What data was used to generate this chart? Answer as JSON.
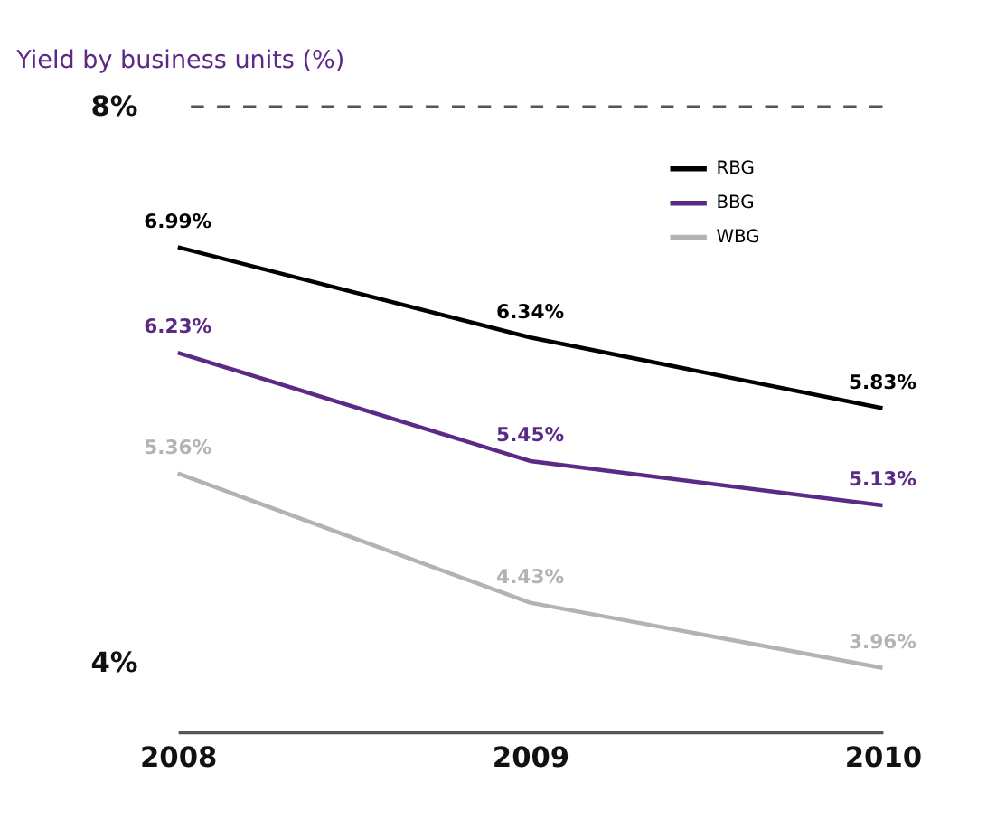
{
  "chart_data": {
    "type": "line",
    "title": "Yield by business units (%)",
    "categories": [
      "2008",
      "2009",
      "2010"
    ],
    "series": [
      {
        "name": "RBG",
        "color": "#000000",
        "values": [
          6.99,
          6.34,
          5.83
        ],
        "value_labels": [
          "6.99%",
          "6.34%",
          "5.83%"
        ]
      },
      {
        "name": "BBG",
        "color": "#5b2a86",
        "values": [
          6.23,
          5.45,
          5.13
        ],
        "value_labels": [
          "6.23%",
          "5.45%",
          "5.13%"
        ]
      },
      {
        "name": "WBG",
        "color": "#b3b3b3",
        "values": [
          5.36,
          4.43,
          3.96
        ],
        "value_labels": [
          "5.36%",
          "4.43%",
          "3.96%"
        ]
      }
    ],
    "ylim": [
      3.5,
      8
    ],
    "yticks": [
      {
        "value": 4,
        "label": "4%"
      },
      {
        "value": 8,
        "label": "8%"
      }
    ],
    "ref_lines": [
      {
        "axis": "y",
        "value": 8,
        "label": null,
        "color": "#555555",
        "line_style": "dashed"
      }
    ],
    "grid": false,
    "legend": "top right",
    "marker": "none",
    "line_style": "solid"
  }
}
